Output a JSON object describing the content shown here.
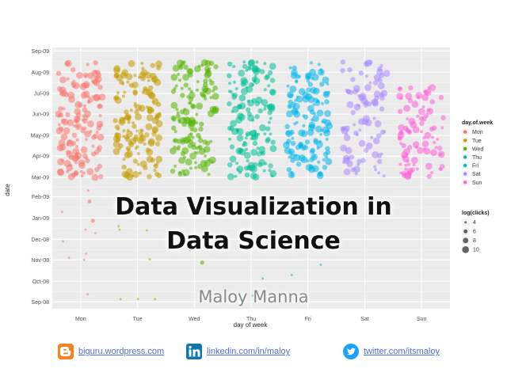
{
  "slide": {
    "title_line1": "Data Visualization in",
    "title_line2": "Data Science",
    "author": "Maloy Manna"
  },
  "footer": {
    "blog": {
      "icon": "blogger-icon",
      "text": "biguru.wordpress.com"
    },
    "linkedin": {
      "icon": "linkedin-icon",
      "text": "linkedin.com/in/maloy"
    },
    "twitter": {
      "icon": "twitter-icon",
      "text": "twitter.com/itsmaloy"
    }
  },
  "colors": {
    "link": "#4a6fd0",
    "blogger": "#f58220",
    "linkedin": "#0e76a8",
    "twitter": "#1da1f2"
  },
  "chart_data": {
    "type": "scatter",
    "title": "",
    "xlabel": "day of week",
    "ylabel": "date",
    "categories": [
      "Mon",
      "Tue",
      "Wed",
      "Thu",
      "Fri",
      "Sat",
      "Sun"
    ],
    "y_ticks": [
      "Sep-08",
      "Oct-08",
      "Nov-08",
      "Dec-08",
      "Jan-09",
      "Feb-09",
      "Mar-09",
      "Apr-09",
      "May-09",
      "Jun-09",
      "Jul-09",
      "Aug-09",
      "Sep-09"
    ],
    "ylim": [
      "2008-08-22",
      "2009-09-06"
    ],
    "grid": true,
    "jitter": true,
    "series": [
      {
        "name": "Mon",
        "color": "#f8766d",
        "dense_range": [
          "2009-03-01",
          "2009-08-16"
        ]
      },
      {
        "name": "Tue",
        "color": "#c49a00",
        "dense_range": [
          "2009-03-01",
          "2009-08-16"
        ]
      },
      {
        "name": "Wed",
        "color": "#53b400",
        "dense_range": [
          "2009-03-01",
          "2009-08-16"
        ]
      },
      {
        "name": "Thu",
        "color": "#00c094",
        "dense_range": [
          "2009-03-01",
          "2009-08-16"
        ]
      },
      {
        "name": "Fri",
        "color": "#00b6eb",
        "dense_range": [
          "2009-03-01",
          "2009-08-16"
        ]
      },
      {
        "name": "Sat",
        "color": "#a58aff",
        "dense_range": [
          "2009-03-01",
          "2009-08-16"
        ]
      },
      {
        "name": "Sun",
        "color": "#fb61d7",
        "dense_range": [
          "2009-03-01",
          "2009-07-10"
        ]
      }
    ],
    "sparse_points": [
      {
        "day": "Mon",
        "date": "2009-01-25",
        "size": 5
      },
      {
        "day": "Mon",
        "date": "2009-01-10",
        "size": 4
      },
      {
        "day": "Mon",
        "date": "2008-12-28",
        "size": 5
      },
      {
        "day": "Mon",
        "date": "2008-12-15",
        "size": 4
      },
      {
        "day": "Mon",
        "date": "2008-12-10",
        "size": 4
      },
      {
        "day": "Mon",
        "date": "2008-11-28",
        "size": 4
      },
      {
        "day": "Mon",
        "date": "2008-11-04",
        "size": 4
      },
      {
        "day": "Mon",
        "date": "2008-11-01",
        "size": 4
      },
      {
        "day": "Mon",
        "date": "2008-11-10",
        "size": 4
      },
      {
        "day": "Mon",
        "date": "2008-09-12",
        "size": 4
      },
      {
        "day": "Mon",
        "date": "2009-02-10",
        "size": 4
      },
      {
        "day": "Tue",
        "date": "2008-12-15",
        "size": 4
      },
      {
        "day": "Tue",
        "date": "2008-12-14",
        "size": 4
      },
      {
        "day": "Tue",
        "date": "2008-11-02",
        "size": 4
      },
      {
        "day": "Tue",
        "date": "2008-09-05",
        "size": 4
      },
      {
        "day": "Tue",
        "date": "2008-09-05",
        "size": 4
      },
      {
        "day": "Tue",
        "date": "2008-09-05",
        "size": 4
      },
      {
        "day": "Tue",
        "date": "2008-12-20",
        "size": 4
      },
      {
        "day": "Wed",
        "date": "2008-10-28",
        "size": 6
      },
      {
        "day": "Wed",
        "date": "2008-11-15",
        "size": 4
      },
      {
        "day": "Thu",
        "date": "2008-11-18",
        "size": 4
      },
      {
        "day": "Thu",
        "date": "2008-09-10",
        "size": 4
      },
      {
        "day": "Thu",
        "date": "2008-10-05",
        "size": 4
      },
      {
        "day": "Fri",
        "date": "2008-10-25",
        "size": 4
      },
      {
        "day": "Fri",
        "date": "2008-10-10",
        "size": 4
      }
    ],
    "legend": {
      "position": "right",
      "color_title": "day.of.week",
      "color_labels": [
        "Mon",
        "Tue",
        "Wed",
        "Thu",
        "Fri",
        "Sat",
        "Sun"
      ],
      "size_title": "log(clicks)",
      "size_labels": [
        "4",
        "6",
        "8",
        "10"
      ]
    }
  }
}
